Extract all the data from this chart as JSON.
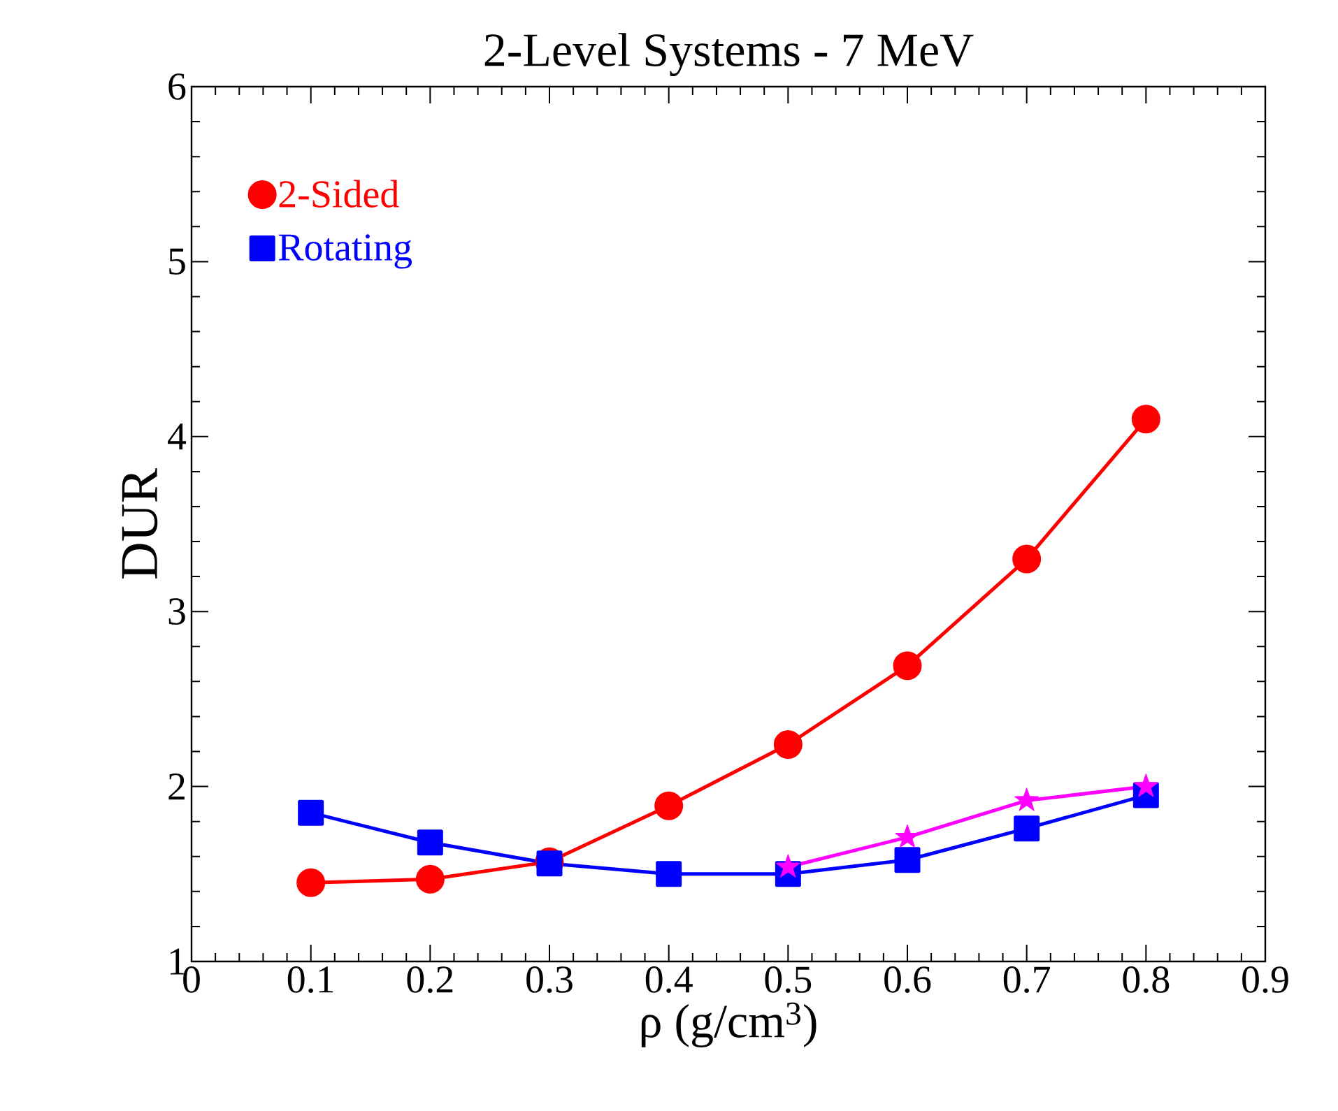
{
  "chart_data": {
    "type": "line",
    "title": "2-Level Systems - 7 MeV",
    "xlabel": "ρ (g/cm$^{3}$)",
    "ylabel": "DUR",
    "x": [
      0.1,
      0.2,
      0.3,
      0.4,
      0.5,
      0.6,
      0.7,
      0.8
    ],
    "series": [
      {
        "name": "2-Sided",
        "color": "#ff0000",
        "marker": "circle",
        "values": [
          1.45,
          1.47,
          1.57,
          1.89,
          2.24,
          2.69,
          3.3,
          4.1
        ]
      },
      {
        "name": "Rotating",
        "color": "#0000ff",
        "marker": "square",
        "values": [
          1.85,
          1.68,
          1.56,
          1.5,
          1.5,
          1.58,
          1.76,
          1.95
        ]
      },
      {
        "color": "#ff00ff",
        "marker": "star",
        "x": [
          0.5,
          0.6,
          0.7,
          0.8
        ],
        "values": [
          1.54,
          1.71,
          1.92,
          2.0
        ]
      }
    ],
    "xlim": [
      0,
      0.9
    ],
    "ylim": [
      1,
      6
    ],
    "xticks": [
      0,
      0.1,
      0.2,
      0.3,
      0.4,
      0.5,
      0.6,
      0.7,
      0.8,
      0.9
    ],
    "yticks": [
      1,
      2,
      3,
      4,
      5,
      6
    ],
    "legend": "top left"
  }
}
